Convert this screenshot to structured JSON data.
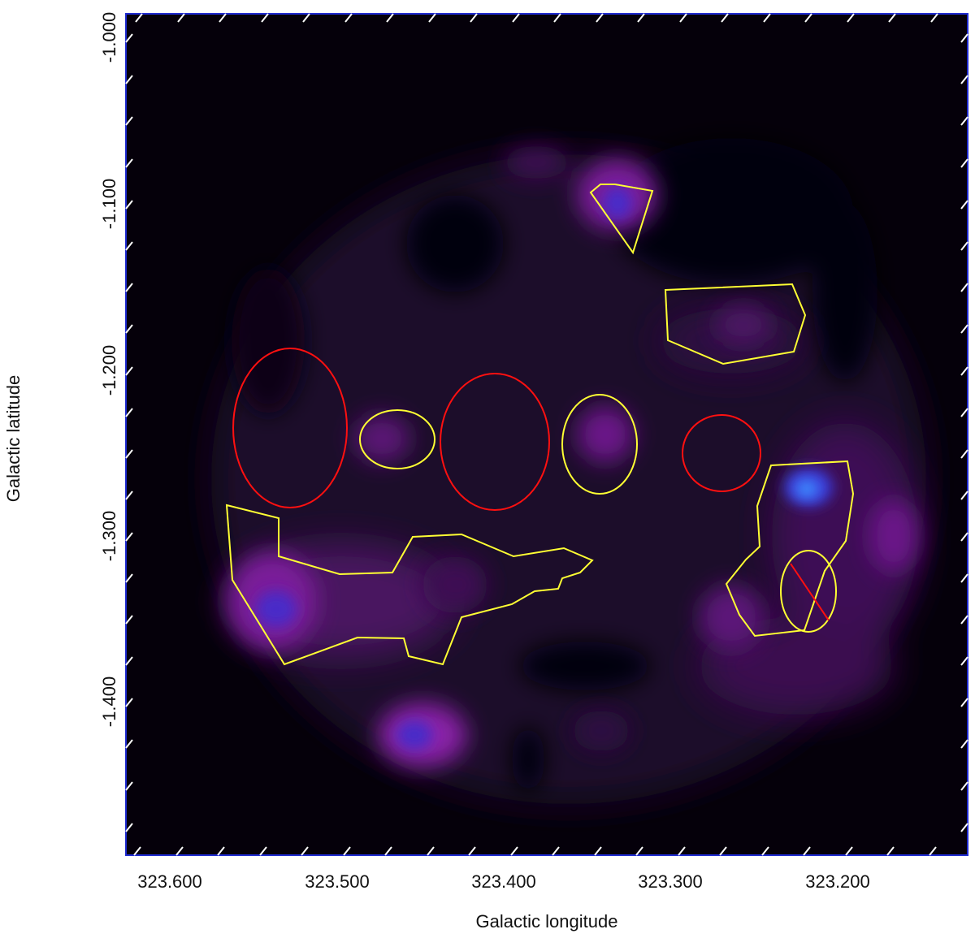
{
  "axes": {
    "x_title": "Galactic longitude",
    "y_title": "Galactic latitude",
    "x_tick_labels": [
      "323.600",
      "323.500",
      "323.400",
      "323.300",
      "323.200"
    ],
    "y_tick_labels": [
      "-1.000",
      "-1.100",
      "-1.200",
      "-1.300",
      "-1.400"
    ]
  },
  "colors": {
    "frame": "#1f2bd0",
    "background": "#05000a",
    "source_region": "#ffff33",
    "background_region": "#ff1010",
    "tick_marks": "#ffffff"
  }
}
